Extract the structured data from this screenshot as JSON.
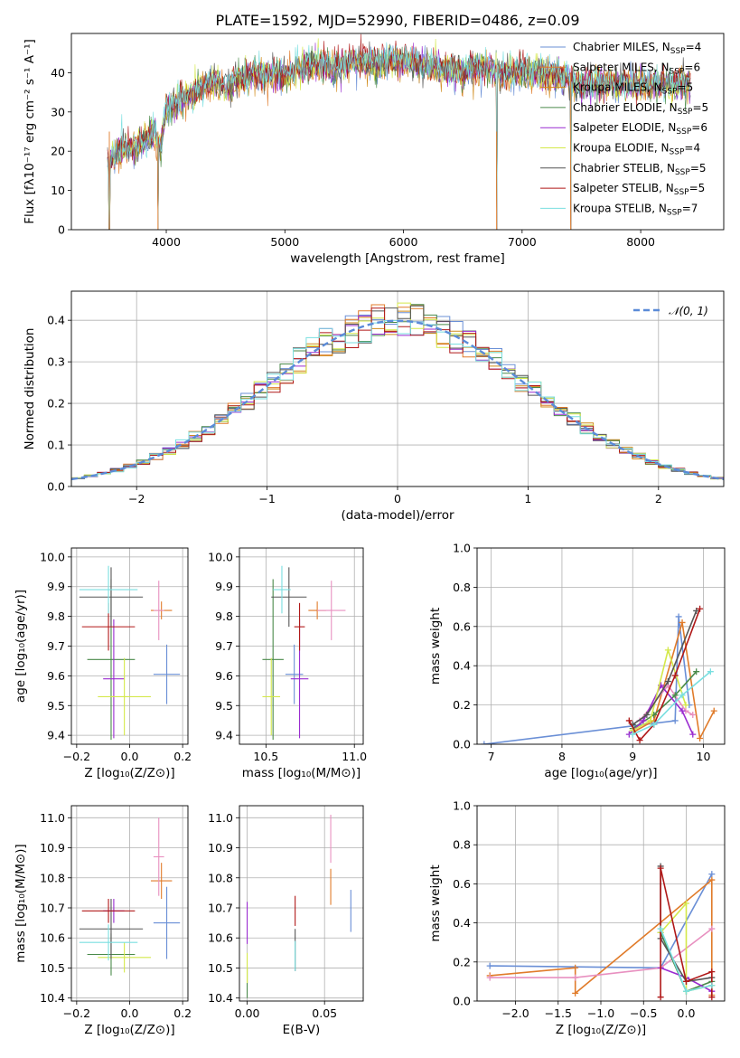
{
  "chart_data": [
    {
      "id": "spectrum",
      "type": "line",
      "title": "PLATE=1592, MJD=52990, FIBERID=0486, z=0.09",
      "xlabel": "wavelength [Angstrom, rest frame]",
      "ylabel": "Flux [fλ10⁻¹⁷ erg cm⁻² s⁻¹ A⁻¹]",
      "xlim": [
        3200,
        8700
      ],
      "ylim": [
        0,
        50
      ],
      "xticks": [
        "4000",
        "5000",
        "6000",
        "7000",
        "8000"
      ],
      "yticks": [
        "0",
        "10",
        "20",
        "30",
        "40"
      ],
      "legend_position": "top-right",
      "legend": [
        {
          "label": "Chabrier MILES, N",
          "sub": "SSP",
          "n": "=4",
          "color": "#6a8fd6"
        },
        {
          "label": "Salpeter MILES, N",
          "sub": "SSP",
          "n": "=6",
          "color": "#e07b2a"
        },
        {
          "label": "Kroupa MILES, N",
          "sub": "SSP",
          "n": "=5",
          "color": "#d08a1a"
        },
        {
          "label": "Chabrier ELODIE, N",
          "sub": "SSP",
          "n": "=5",
          "color": "#4a8a4a"
        },
        {
          "label": "Salpeter ELODIE, N",
          "sub": "SSP",
          "n": "=6",
          "color": "#9a2bd0"
        },
        {
          "label": "Kroupa ELODIE, N",
          "sub": "SSP",
          "n": "=4",
          "color": "#d4e84a"
        },
        {
          "label": "Chabrier STELIB, N",
          "sub": "SSP",
          "n": "=5",
          "color": "#555555"
        },
        {
          "label": "Salpeter STELIB, N",
          "sub": "SSP",
          "n": "=5",
          "color": "#b01818"
        },
        {
          "label": "Kroupa STELIB, N",
          "sub": "SSP",
          "n": "=7",
          "color": "#7adfe0"
        }
      ],
      "continuum": {
        "x": [
          3500,
          3600,
          3700,
          3800,
          3900,
          3950,
          4000,
          4100,
          4200,
          4300,
          4400,
          4500,
          4600,
          4700,
          4800,
          4900,
          5000,
          5100,
          5200,
          5300,
          5400,
          5500,
          5600,
          5700,
          5800,
          5900,
          6000,
          6100,
          6200,
          6300,
          6400,
          6500,
          6600,
          6700,
          6800,
          6900,
          7000,
          7100,
          7200,
          7300,
          7400,
          7500
        ],
        "y": [
          17,
          20,
          21,
          22,
          25,
          20,
          31,
          33,
          34,
          36,
          38,
          36,
          38,
          39,
          40,
          40,
          39,
          41,
          42,
          42,
          41,
          42,
          43,
          43,
          42,
          43,
          43,
          42,
          42,
          41,
          41,
          40,
          41,
          41,
          40,
          40,
          40,
          40,
          40,
          39,
          38,
          37
        ]
      },
      "dips": [
        {
          "x": 3520,
          "y": 0
        },
        {
          "x": 3930,
          "y": 0
        },
        {
          "x": 6785,
          "y": 0
        },
        {
          "x": 7410,
          "y": 0
        }
      ]
    },
    {
      "id": "residuals",
      "type": "histogram",
      "xlabel": "(data-model)/error",
      "ylabel": "Normed distribution",
      "xlim": [
        -2.5,
        2.5
      ],
      "ylim": [
        0,
        0.47
      ],
      "xticks": [
        "−2",
        "−1",
        "0",
        "1",
        "2"
      ],
      "yticks": [
        "0.0",
        "0.1",
        "0.2",
        "0.3",
        "0.4"
      ],
      "reference_label": "𝒩(0, 1)",
      "reference_color": "#5b8bd8",
      "legend_position": "top-right"
    },
    {
      "id": "age_vs_Z",
      "type": "errorbar",
      "xlabel": "Z [log₁₀(Z/Z⊙)]",
      "ylabel": "age  [log₁₀(age/yr)]",
      "xlim": [
        -0.22,
        0.22
      ],
      "ylim": [
        9.37,
        10.03
      ],
      "xticks": [
        "−0.2",
        "0.0",
        "0.2"
      ],
      "yticks": [
        "9.4",
        "9.5",
        "9.6",
        "9.7",
        "9.8",
        "9.9",
        "10.0"
      ],
      "points": [
        {
          "x": 0.14,
          "xe": 0.05,
          "y": 9.605,
          "ye": 0.1,
          "color": "#6a8fd6"
        },
        {
          "x": 0.12,
          "xe": 0.04,
          "y": 9.82,
          "ye": 0.03,
          "color": "#e07b2a"
        },
        {
          "x": 0.11,
          "xe": 0.02,
          "y": 9.82,
          "ye": 0.1,
          "color": "#e890c0"
        },
        {
          "x": -0.07,
          "xe": 0.09,
          "y": 9.655,
          "ye": 0.27,
          "color": "#4a8a4a"
        },
        {
          "x": -0.06,
          "xe": 0.04,
          "y": 9.59,
          "ye": 0.2,
          "color": "#9a2bd0"
        },
        {
          "x": -0.02,
          "xe": 0.1,
          "y": 9.53,
          "ye": 0.13,
          "color": "#d4e84a"
        },
        {
          "x": -0.07,
          "xe": 0.12,
          "y": 9.865,
          "ye": 0.1,
          "color": "#555555"
        },
        {
          "x": -0.08,
          "xe": 0.1,
          "y": 9.765,
          "ye": 0.08,
          "color": "#b01818"
        },
        {
          "x": -0.08,
          "xe": 0.11,
          "y": 9.89,
          "ye": 0.08,
          "color": "#7adfe0"
        }
      ]
    },
    {
      "id": "age_vs_mass",
      "type": "errorbar",
      "xlabel": "mass [log₁₀(M/M⊙)]",
      "ylabel": "",
      "xlim": [
        10.35,
        11.05
      ],
      "ylim": [
        9.37,
        10.03
      ],
      "xticks": [
        "10.5",
        "11.0"
      ],
      "yticks": [
        "9.4",
        "9.5",
        "9.6",
        "9.7",
        "9.8",
        "9.9",
        "10.0"
      ],
      "points": [
        {
          "x": 10.66,
          "xe": 0.05,
          "y": 9.605,
          "ye": 0.1,
          "color": "#6a8fd6"
        },
        {
          "x": 10.79,
          "xe": 0.05,
          "y": 9.82,
          "ye": 0.03,
          "color": "#e07b2a"
        },
        {
          "x": 10.87,
          "xe": 0.08,
          "y": 9.82,
          "ye": 0.1,
          "color": "#e890c0"
        },
        {
          "x": 10.54,
          "xe": 0.06,
          "y": 9.655,
          "ye": 0.27,
          "color": "#4a8a4a"
        },
        {
          "x": 10.69,
          "xe": 0.05,
          "y": 9.59,
          "ye": 0.2,
          "color": "#9a2bd0"
        },
        {
          "x": 10.53,
          "xe": 0.05,
          "y": 9.53,
          "ye": 0.13,
          "color": "#d4e84a"
        },
        {
          "x": 10.63,
          "xe": 0.1,
          "y": 9.865,
          "ye": 0.1,
          "color": "#555555"
        },
        {
          "x": 10.69,
          "xe": 0.03,
          "y": 9.765,
          "ye": 0.08,
          "color": "#b01818"
        },
        {
          "x": 10.59,
          "xe": 0.05,
          "y": 9.89,
          "ye": 0.08,
          "color": "#7adfe0"
        }
      ]
    },
    {
      "id": "weight_vs_age",
      "type": "line",
      "xlabel": "age  [log₁₀(age/yr)]",
      "ylabel": "mass weight",
      "xlim": [
        6.8,
        10.3
      ],
      "ylim": [
        0,
        1
      ],
      "xticks": [
        "7",
        "8",
        "9",
        "10"
      ],
      "yticks": [
        "0.0",
        "0.2",
        "0.4",
        "0.6",
        "0.8",
        "1.0"
      ],
      "series": [
        {
          "color": "#6a8fd6",
          "x": [
            6.9,
            9.6,
            9.65,
            9.8
          ],
          "y": [
            0.0,
            0.12,
            0.65,
            0.2
          ]
        },
        {
          "color": "#e07b2a",
          "x": [
            9.0,
            9.3,
            9.7,
            9.95,
            10.15
          ],
          "y": [
            0.06,
            0.12,
            0.62,
            0.03,
            0.17
          ]
        },
        {
          "color": "#e890c0",
          "x": [
            9.1,
            9.5,
            9.75,
            9.85
          ],
          "y": [
            0.12,
            0.3,
            0.17,
            0.15
          ]
        },
        {
          "color": "#4a8a4a",
          "x": [
            9.0,
            9.3,
            9.6,
            9.9
          ],
          "y": [
            0.08,
            0.15,
            0.25,
            0.37
          ]
        },
        {
          "color": "#9a2bd0",
          "x": [
            8.95,
            9.15,
            9.4,
            9.7,
            9.85
          ],
          "y": [
            0.05,
            0.12,
            0.3,
            0.17,
            0.05
          ]
        },
        {
          "color": "#d4e84a",
          "x": [
            9.0,
            9.25,
            9.5,
            9.75
          ],
          "y": [
            0.07,
            0.12,
            0.48,
            0.2
          ]
        },
        {
          "color": "#555555",
          "x": [
            9.0,
            9.2,
            9.5,
            9.9
          ],
          "y": [
            0.1,
            0.15,
            0.32,
            0.68
          ]
        },
        {
          "color": "#b01818",
          "x": [
            8.95,
            9.1,
            9.3,
            9.6,
            9.95
          ],
          "y": [
            0.12,
            0.02,
            0.1,
            0.35,
            0.69
          ]
        },
        {
          "color": "#7adfe0",
          "x": [
            9.0,
            9.3,
            9.7,
            10.1
          ],
          "y": [
            0.05,
            0.1,
            0.25,
            0.37
          ]
        }
      ]
    },
    {
      "id": "mass_vs_Z",
      "type": "errorbar",
      "xlabel": "Z [log₁₀(Z/Z⊙)]",
      "ylabel": "mass [log₁₀(M/M⊙)]",
      "xlim": [
        -0.22,
        0.22
      ],
      "ylim": [
        10.39,
        11.04
      ],
      "xticks": [
        "−0.2",
        "0.0",
        "0.2"
      ],
      "yticks": [
        "10.4",
        "10.5",
        "10.6",
        "10.7",
        "10.8",
        "10.9",
        "11.0"
      ],
      "points": [
        {
          "x": 0.14,
          "xe": 0.05,
          "y": 10.65,
          "ye": 0.12,
          "color": "#6a8fd6"
        },
        {
          "x": 0.12,
          "xe": 0.04,
          "y": 10.79,
          "ye": 0.06,
          "color": "#e07b2a"
        },
        {
          "x": 0.11,
          "xe": 0.02,
          "y": 10.87,
          "ye": 0.13,
          "color": "#e890c0"
        },
        {
          "x": -0.07,
          "xe": 0.09,
          "y": 10.545,
          "ye": 0.07,
          "color": "#4a8a4a"
        },
        {
          "x": -0.06,
          "xe": 0.04,
          "y": 10.69,
          "ye": 0.04,
          "color": "#9a2bd0"
        },
        {
          "x": -0.02,
          "xe": 0.1,
          "y": 10.535,
          "ye": 0.05,
          "color": "#d4e84a"
        },
        {
          "x": -0.07,
          "xe": 0.12,
          "y": 10.63,
          "ye": 0.1,
          "color": "#555555"
        },
        {
          "x": -0.08,
          "xe": 0.1,
          "y": 10.69,
          "ye": 0.04,
          "color": "#b01818"
        },
        {
          "x": -0.08,
          "xe": 0.11,
          "y": 10.585,
          "ye": 0.06,
          "color": "#7adfe0"
        }
      ]
    },
    {
      "id": "mass_vs_ebv",
      "type": "errorbar",
      "xlabel": "E(B-V)",
      "ylabel": "",
      "xlim": [
        -0.005,
        0.075
      ],
      "ylim": [
        10.39,
        11.04
      ],
      "xticks": [
        "0.00",
        "0.05"
      ],
      "yticks": [
        "10.4",
        "10.5",
        "10.6",
        "10.7",
        "10.8",
        "10.9",
        "11.0"
      ],
      "points": [
        {
          "x": 0.067,
          "xe": 0,
          "y": 10.69,
          "ye": 0.07,
          "color": "#6a8fd6"
        },
        {
          "x": 0.054,
          "xe": 0,
          "y": 10.77,
          "ye": 0.06,
          "color": "#e07b2a"
        },
        {
          "x": 0.054,
          "xe": 0,
          "y": 10.93,
          "ye": 0.08,
          "color": "#e890c0"
        },
        {
          "x": 0.0,
          "xe": 0,
          "y": 10.45,
          "ye": 0.05,
          "color": "#4a8a4a"
        },
        {
          "x": 0.0,
          "xe": 0,
          "y": 10.65,
          "ye": 0.07,
          "color": "#9a2bd0"
        },
        {
          "x": 0.0,
          "xe": 0,
          "y": 10.5,
          "ye": 0.05,
          "color": "#d4e84a"
        },
        {
          "x": 0.031,
          "xe": 0,
          "y": 10.56,
          "ye": 0.07,
          "color": "#555555"
        },
        {
          "x": 0.031,
          "xe": 0,
          "y": 10.69,
          "ye": 0.05,
          "color": "#b01818"
        },
        {
          "x": 0.031,
          "xe": 0,
          "y": 10.54,
          "ye": 0.05,
          "color": "#7adfe0"
        }
      ]
    },
    {
      "id": "weight_vs_Z",
      "type": "line",
      "xlabel": "Z [log₁₀(Z/Z⊙)]",
      "ylabel": "mass weight",
      "xlim": [
        -2.45,
        0.45
      ],
      "ylim": [
        0,
        1
      ],
      "xticks": [
        "−2.0",
        "−1.5",
        "−1.0",
        "−0.5",
        "0.0"
      ],
      "yticks": [
        "0.0",
        "0.2",
        "0.4",
        "0.6",
        "0.8",
        "1.0"
      ],
      "series": [
        {
          "color": "#6a8fd6",
          "x": [
            -2.3,
            -0.3,
            0.3
          ],
          "y": [
            0.18,
            0.17,
            0.65
          ]
        },
        {
          "color": "#e07b2a",
          "x": [
            -2.3,
            -1.3,
            -1.3,
            0.3,
            0.3
          ],
          "y": [
            0.13,
            0.17,
            0.04,
            0.62,
            0.03
          ]
        },
        {
          "color": "#e890c0",
          "x": [
            -2.3,
            -1.3,
            -0.3,
            0.3
          ],
          "y": [
            0.12,
            0.12,
            0.17,
            0.37
          ]
        },
        {
          "color": "#4a8a4a",
          "x": [
            -0.3,
            0.0,
            0.3
          ],
          "y": [
            0.35,
            0.05,
            0.1
          ]
        },
        {
          "color": "#9a2bd0",
          "x": [
            -0.3,
            0.0,
            0.3
          ],
          "y": [
            0.17,
            0.12,
            0.05
          ]
        },
        {
          "color": "#d4e84a",
          "x": [
            -0.3,
            0.0,
            0.0,
            0.3
          ],
          "y": [
            0.35,
            0.5,
            0.05,
            0.08
          ]
        },
        {
          "color": "#555555",
          "x": [
            -0.3,
            -0.3,
            0.0,
            0.3
          ],
          "y": [
            0.69,
            0.32,
            0.1,
            0.12
          ]
        },
        {
          "color": "#b01818",
          "x": [
            -0.3,
            -0.3,
            0.0,
            0.3,
            0.3
          ],
          "y": [
            0.02,
            0.68,
            0.1,
            0.15,
            0.02
          ]
        },
        {
          "color": "#7adfe0",
          "x": [
            -0.3,
            0.0,
            0.3
          ],
          "y": [
            0.37,
            0.05,
            0.08
          ]
        }
      ]
    }
  ]
}
